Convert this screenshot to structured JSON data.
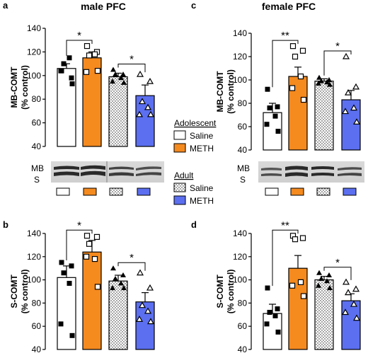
{
  "colors": {
    "saline": "#ffffff",
    "meth": "#f58a1f",
    "adult_meth": "#5b6ff0",
    "ink": "#000000"
  },
  "blot_labels": [
    "MB",
    "S"
  ],
  "legend": {
    "adolescent_heading": "Adolescent",
    "adult_heading": "Adult",
    "items": [
      {
        "label": "Saline",
        "fill": "saline"
      },
      {
        "label": "METH",
        "fill": "meth"
      },
      {
        "label": "Saline",
        "fill": "dots"
      },
      {
        "label": "METH",
        "fill": "adult_meth"
      }
    ]
  },
  "chart_data": [
    {
      "panel": "a",
      "type": "bar",
      "title": "male PFC",
      "ylabel": "MB-COMT\n(% control)",
      "ylim": [
        40,
        140
      ],
      "yticks": [
        40,
        60,
        80,
        100,
        120,
        140
      ],
      "categories": [
        "Adolescent Saline",
        "Adolescent METH",
        "Adult Saline",
        "Adult METH"
      ],
      "values": [
        106,
        115,
        99,
        83
      ],
      "errors": [
        4,
        5,
        3,
        9
      ],
      "points": [
        [
          104,
          98,
          110,
          115,
          104,
          93
        ],
        [
          125,
          120,
          117,
          118,
          103,
          104
        ],
        [
          105,
          101,
          101,
          98,
          95,
          94
        ],
        [
          101,
          95,
          78,
          73,
          67,
          67
        ]
      ],
      "significance": [
        {
          "pair": [
            0,
            1
          ],
          "label": "*"
        },
        {
          "pair": [
            2,
            3
          ],
          "label": "*"
        }
      ]
    },
    {
      "panel": "b",
      "type": "bar",
      "title": "",
      "ylabel": "S-COMT\n(% control)",
      "ylim": [
        40,
        140
      ],
      "yticks": [
        40,
        60,
        80,
        100,
        120,
        140
      ],
      "categories": [
        "Adolescent Saline",
        "Adolescent METH",
        "Adult Saline",
        "Adult METH"
      ],
      "values": [
        102,
        124,
        99,
        81
      ],
      "errors": [
        10,
        10,
        5,
        8
      ],
      "points": [
        [
          115,
          112,
          106,
          97,
          62,
          52
        ],
        [
          138,
          137,
          131,
          118,
          120,
          94
        ],
        [
          110,
          104,
          101,
          97,
          93,
          93
        ],
        [
          106,
          93,
          78,
          73,
          66,
          64
        ]
      ],
      "significance": [
        {
          "pair": [
            0,
            1
          ],
          "label": "*"
        },
        {
          "pair": [
            2,
            3
          ],
          "label": "*"
        }
      ]
    },
    {
      "panel": "c",
      "type": "bar",
      "title": "female PFC",
      "ylabel": "MB-COMT\n(% control)",
      "ylim": [
        40,
        140
      ],
      "yticks": [
        40,
        60,
        80,
        100,
        120,
        140
      ],
      "categories": [
        "Adolescent Saline",
        "Adolescent METH",
        "Adult Saline",
        "Adult METH"
      ],
      "values": [
        72,
        103,
        99,
        83
      ],
      "errors": [
        8,
        8,
        2,
        8
      ],
      "points": [
        [
          92,
          77,
          76,
          69,
          62,
          56
        ],
        [
          129,
          125,
          120,
          103,
          93,
          83
        ],
        [
          102,
          100,
          99,
          98,
          97,
          96
        ],
        [
          120,
          94,
          89,
          76,
          73,
          64
        ]
      ],
      "significance": [
        {
          "pair": [
            0,
            1
          ],
          "label": "**"
        },
        {
          "pair": [
            2,
            3
          ],
          "label": "*"
        }
      ]
    },
    {
      "panel": "d",
      "type": "bar",
      "title": "",
      "ylabel": "S-COMT\n(% control)",
      "ylim": [
        40,
        140
      ],
      "yticks": [
        40,
        60,
        80,
        100,
        120,
        140
      ],
      "categories": [
        "Adolescent Saline",
        "Adolescent METH",
        "Adult Saline",
        "Adult METH"
      ],
      "values": [
        71,
        110,
        100,
        82
      ],
      "errors": [
        8,
        11,
        3,
        6
      ],
      "points": [
        [
          93,
          75,
          72,
          69,
          62,
          55
        ],
        [
          138,
          136,
          135,
          98,
          95,
          86
        ],
        [
          106,
          104,
          101,
          99,
          95,
          93
        ],
        [
          98,
          92,
          89,
          79,
          72,
          67
        ]
      ],
      "significance": [
        {
          "pair": [
            0,
            1
          ],
          "label": "**"
        },
        {
          "pair": [
            2,
            3
          ],
          "label": "*"
        }
      ]
    }
  ]
}
